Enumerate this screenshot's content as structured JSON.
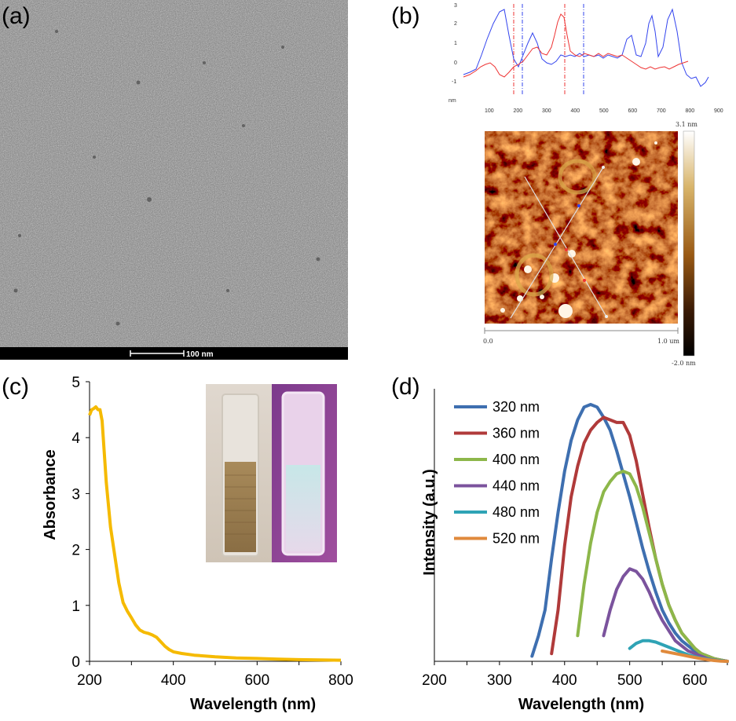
{
  "panel_labels": {
    "a": "(a)",
    "b": "(b)",
    "c": "(c)",
    "d": "(d)"
  },
  "panel_a": {
    "scale_bar_label": "100 nm"
  },
  "panel_b": {
    "profile": {
      "y_ticks": [
        "3",
        "2",
        "1",
        "0",
        "-1"
      ],
      "x_unit": "nm",
      "x_ticks": [
        "100",
        "200",
        "300",
        "400",
        "500",
        "600",
        "700",
        "800",
        "900"
      ],
      "series_colors": [
        "#3344ee",
        "#ee3333"
      ]
    },
    "afm": {
      "colorbar_max": "3.1 nm",
      "colorbar_min": "-2.0 nm",
      "scale_start": "0.0",
      "scale_end": "1.0 um"
    }
  },
  "chart_data": [
    {
      "type": "line",
      "panel": "c",
      "title": "",
      "xlabel": "Wavelength (nm)",
      "ylabel": "Absorbance",
      "xlim": [
        200,
        800
      ],
      "ylim": [
        0,
        5
      ],
      "x_ticks": [
        "200",
        "400",
        "600",
        "800"
      ],
      "y_ticks": [
        "0",
        "1",
        "2",
        "3",
        "4",
        "5"
      ],
      "color": "#F5BA00",
      "series": [
        {
          "name": "absorbance",
          "x": [
            200,
            205,
            210,
            215,
            220,
            225,
            230,
            240,
            250,
            260,
            270,
            280,
            290,
            300,
            310,
            320,
            330,
            340,
            350,
            360,
            370,
            380,
            390,
            400,
            420,
            450,
            500,
            550,
            600,
            650,
            700,
            750,
            800
          ],
          "y": [
            4.4,
            4.5,
            4.52,
            4.55,
            4.5,
            4.5,
            4.3,
            3.2,
            2.4,
            1.9,
            1.4,
            1.05,
            0.9,
            0.78,
            0.65,
            0.56,
            0.52,
            0.5,
            0.47,
            0.43,
            0.35,
            0.27,
            0.21,
            0.17,
            0.14,
            0.11,
            0.08,
            0.06,
            0.05,
            0.04,
            0.03,
            0.025,
            0.02
          ]
        }
      ],
      "inset": "photo of two cuvettes: solution under daylight (left) and under UV light (right)"
    },
    {
      "type": "line",
      "panel": "d",
      "title": "",
      "xlabel": "Wavelength (nm)",
      "ylabel": "Intensity (a.u.)",
      "xlim": [
        200,
        650
      ],
      "ylim": [
        0,
        1
      ],
      "x_ticks": [
        "200",
        "300",
        "400",
        "500",
        "600"
      ],
      "legend_position": "top-left",
      "series": [
        {
          "name": "320 nm",
          "color": "#3E6FB0",
          "x": [
            350,
            360,
            370,
            380,
            390,
            400,
            410,
            420,
            430,
            440,
            450,
            460,
            470,
            480,
            490,
            500,
            510,
            520,
            530,
            540,
            550,
            560,
            570,
            580,
            590,
            600,
            610,
            620,
            630,
            640,
            650
          ],
          "y": [
            0.02,
            0.1,
            0.2,
            0.4,
            0.58,
            0.74,
            0.86,
            0.94,
            0.99,
            1.0,
            0.99,
            0.95,
            0.9,
            0.82,
            0.73,
            0.64,
            0.54,
            0.44,
            0.35,
            0.27,
            0.2,
            0.15,
            0.11,
            0.08,
            0.06,
            0.04,
            0.03,
            0.02,
            0.01,
            0.005,
            0.0
          ]
        },
        {
          "name": "360 nm",
          "color": "#B03A3A",
          "x": [
            380,
            390,
            400,
            410,
            420,
            430,
            440,
            450,
            460,
            470,
            480,
            490,
            500,
            510,
            520,
            530,
            540,
            550,
            560,
            570,
            580,
            590,
            600,
            610,
            620,
            630,
            640,
            650
          ],
          "y": [
            0.03,
            0.2,
            0.45,
            0.64,
            0.76,
            0.85,
            0.9,
            0.93,
            0.95,
            0.94,
            0.93,
            0.93,
            0.88,
            0.78,
            0.65,
            0.52,
            0.4,
            0.3,
            0.22,
            0.16,
            0.11,
            0.08,
            0.05,
            0.03,
            0.02,
            0.01,
            0.005,
            0.0
          ]
        },
        {
          "name": "400 nm",
          "color": "#8DB74A",
          "x": [
            420,
            430,
            440,
            450,
            460,
            470,
            480,
            490,
            500,
            510,
            520,
            530,
            540,
            550,
            560,
            570,
            580,
            590,
            600,
            610,
            620,
            630,
            640,
            650
          ],
          "y": [
            0.1,
            0.3,
            0.46,
            0.58,
            0.66,
            0.7,
            0.73,
            0.74,
            0.73,
            0.68,
            0.6,
            0.5,
            0.4,
            0.3,
            0.22,
            0.16,
            0.11,
            0.08,
            0.05,
            0.03,
            0.02,
            0.01,
            0.005,
            0.0
          ]
        },
        {
          "name": "440 nm",
          "color": "#7B539D",
          "x": [
            460,
            470,
            480,
            490,
            500,
            510,
            520,
            530,
            540,
            550,
            560,
            570,
            580,
            590,
            600,
            610,
            620,
            630,
            640,
            650
          ],
          "y": [
            0.1,
            0.2,
            0.28,
            0.33,
            0.36,
            0.35,
            0.32,
            0.27,
            0.21,
            0.16,
            0.12,
            0.08,
            0.06,
            0.04,
            0.03,
            0.02,
            0.01,
            0.005,
            0.002,
            0.0
          ]
        },
        {
          "name": "480 nm",
          "color": "#2FA3B5",
          "x": [
            500,
            510,
            520,
            530,
            540,
            550,
            560,
            570,
            580,
            590,
            600,
            610,
            620,
            630,
            640,
            650
          ],
          "y": [
            0.05,
            0.07,
            0.08,
            0.08,
            0.075,
            0.065,
            0.055,
            0.045,
            0.035,
            0.025,
            0.018,
            0.012,
            0.008,
            0.004,
            0.002,
            0.0
          ]
        },
        {
          "name": "520 nm",
          "color": "#E08A3C",
          "x": [
            550,
            560,
            570,
            580,
            590,
            600,
            610,
            620,
            630,
            640,
            650
          ],
          "y": [
            0.04,
            0.035,
            0.03,
            0.025,
            0.02,
            0.015,
            0.01,
            0.006,
            0.003,
            0.001,
            0.0
          ]
        }
      ]
    }
  ]
}
